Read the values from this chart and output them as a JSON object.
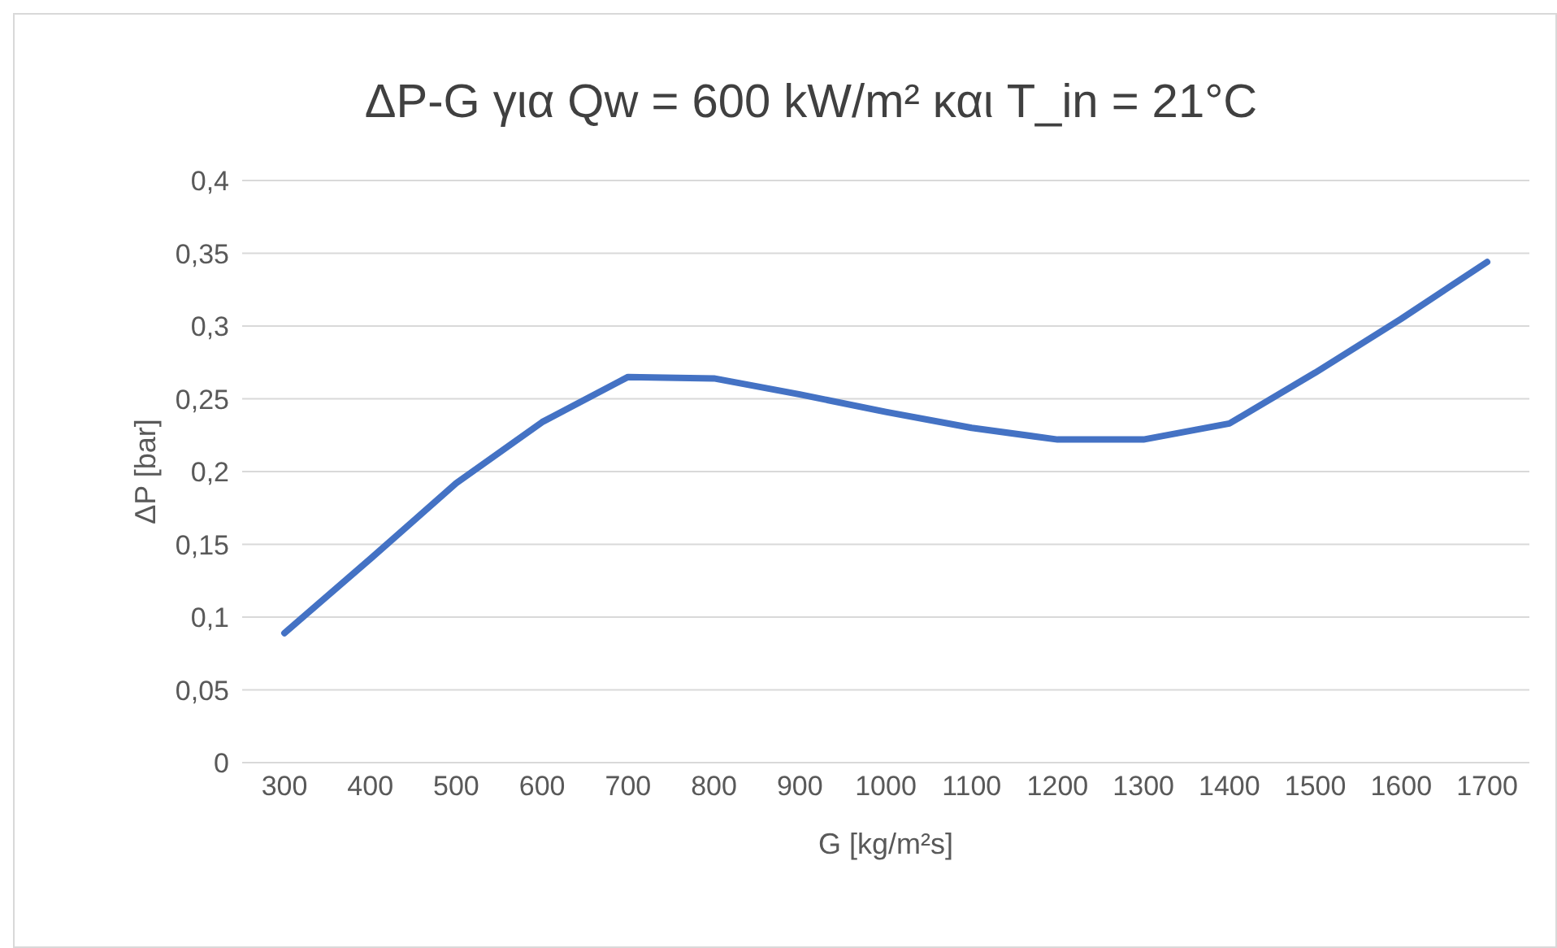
{
  "chart_data": {
    "type": "line",
    "title": "ΔP-G για Qw = 600 kW/m² και T_in = 21°C",
    "xlabel": "G [kg/m²s]",
    "ylabel": "ΔP [bar]",
    "categories": [
      "300",
      "400",
      "500",
      "600",
      "700",
      "800",
      "900",
      "1000",
      "1100",
      "1200",
      "1300",
      "1400",
      "1500",
      "1600",
      "1700"
    ],
    "series": [
      {
        "color": "#4472c4",
        "values": [
          0.089,
          0.14,
          0.192,
          0.234,
          0.265,
          0.264,
          0.253,
          0.241,
          0.23,
          0.222,
          0.222,
          0.233,
          0.268,
          0.305,
          0.344
        ]
      }
    ],
    "ylim": [
      0,
      0.4
    ],
    "yticks": [
      {
        "value": 0,
        "label": "0"
      },
      {
        "value": 0.05,
        "label": "0,05"
      },
      {
        "value": 0.1,
        "label": "0,1"
      },
      {
        "value": 0.15,
        "label": "0,15"
      },
      {
        "value": 0.2,
        "label": "0,2"
      },
      {
        "value": 0.25,
        "label": "0,25"
      },
      {
        "value": 0.3,
        "label": "0,3"
      },
      {
        "value": 0.35,
        "label": "0,35"
      },
      {
        "value": 0.4,
        "label": "0,4"
      }
    ],
    "grid": "y",
    "marker": "none",
    "line_style": "solid"
  }
}
